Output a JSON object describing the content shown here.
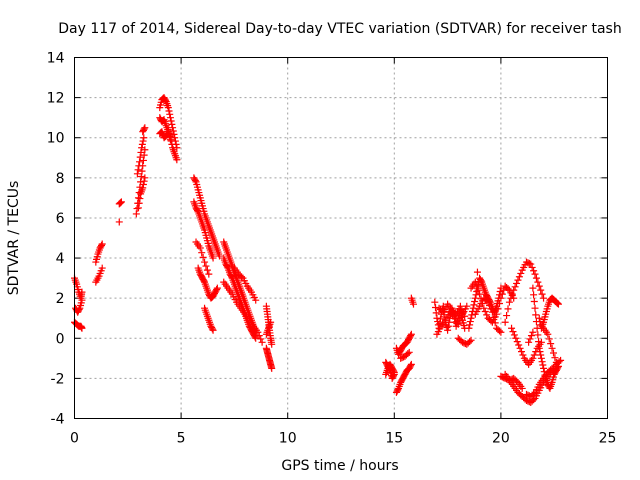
{
  "chart_data": {
    "type": "scatter",
    "title": "Day 117 of 2014, Sidereal Day-to-day VTEC variation (SDTVAR) for receiver tash",
    "xlabel": "GPS time / hours",
    "ylabel": "SDTVAR / TECUs",
    "xlim": [
      0,
      25
    ],
    "ylim": [
      -4,
      14
    ],
    "xticks": [
      0,
      5,
      10,
      15,
      20,
      25
    ],
    "yticks": [
      -4,
      -2,
      0,
      2,
      4,
      6,
      8,
      10,
      12,
      14
    ],
    "grid": true,
    "marker": "+",
    "color": "#ff0000",
    "series": [
      {
        "name": "tash",
        "segments": [
          {
            "x": [
              0.0,
              0.1,
              0.2,
              0.3,
              0.35
            ],
            "y": [
              3.0,
              2.7,
              2.3,
              2.0,
              2.3
            ]
          },
          {
            "x": [
              0.05,
              0.15,
              0.25,
              0.35
            ],
            "y": [
              1.5,
              1.3,
              1.5,
              1.9
            ]
          },
          {
            "x": [
              0.0,
              0.1,
              0.2,
              0.3,
              0.35
            ],
            "y": [
              0.8,
              0.7,
              0.6,
              0.6,
              0.5
            ]
          },
          {
            "x": [
              1.0,
              1.1,
              1.2,
              1.3
            ],
            "y": [
              3.8,
              4.2,
              4.5,
              4.7
            ]
          },
          {
            "x": [
              1.0,
              1.15,
              1.3
            ],
            "y": [
              2.8,
              3.1,
              3.5
            ]
          },
          {
            "x": [
              2.1,
              2.2
            ],
            "y": [
              6.7,
              6.8
            ]
          },
          {
            "x": [
              2.1
            ],
            "y": [
              5.8
            ]
          },
          {
            "x": [
              2.9,
              3.0,
              3.1,
              3.2,
              3.3
            ],
            "y": [
              6.2,
              7.0,
              7.8,
              8.6,
              9.4
            ]
          },
          {
            "x": [
              2.95,
              3.05,
              3.15,
              3.25
            ],
            "y": [
              8.2,
              8.8,
              9.5,
              10.0
            ]
          },
          {
            "x": [
              3.2,
              3.3
            ],
            "y": [
              10.3,
              10.5
            ]
          },
          {
            "x": [
              3.0,
              3.1,
              3.2,
              3.3
            ],
            "y": [
              6.5,
              7.2,
              7.5,
              8.0
            ]
          },
          {
            "x": [
              4.0,
              4.1,
              4.2,
              4.3,
              4.4,
              4.5,
              4.6,
              4.7,
              4.8
            ],
            "y": [
              11.5,
              11.9,
              12.0,
              11.8,
              11.5,
              11.0,
              10.5,
              10.0,
              9.5
            ]
          },
          {
            "x": [
              4.0,
              4.1,
              4.2,
              4.3,
              4.4,
              4.5,
              4.6,
              4.7,
              4.8
            ],
            "y": [
              11.0,
              10.8,
              10.9,
              10.6,
              10.3,
              10.0,
              9.5,
              9.2,
              8.9
            ]
          },
          {
            "x": [
              4.0,
              4.1,
              4.2,
              4.3,
              4.4,
              4.5
            ],
            "y": [
              10.2,
              10.3,
              10.0,
              10.1,
              10.4,
              9.9
            ]
          },
          {
            "x": [
              5.6,
              5.7,
              5.8,
              5.9,
              6.0,
              6.1,
              6.2,
              6.3,
              6.4,
              6.5,
              6.6,
              6.7,
              6.8
            ],
            "y": [
              8.0,
              7.8,
              7.4,
              7.0,
              6.6,
              6.2,
              5.9,
              5.6,
              5.3,
              5.0,
              4.7,
              4.4,
              4.1
            ]
          },
          {
            "x": [
              5.6,
              5.7,
              5.8,
              5.9,
              6.0,
              6.1,
              6.2,
              6.3,
              6.4,
              6.5
            ],
            "y": [
              6.8,
              6.5,
              6.3,
              6.0,
              5.7,
              5.4,
              5.0,
              4.6,
              4.3,
              4.0
            ]
          },
          {
            "x": [
              5.7,
              5.9,
              6.1,
              6.3
            ],
            "y": [
              4.8,
              4.5,
              3.8,
              3.2
            ]
          },
          {
            "x": [
              5.8,
              5.9,
              6.0,
              6.1,
              6.2,
              6.3,
              6.4,
              6.5,
              6.6,
              6.7
            ],
            "y": [
              3.5,
              3.2,
              3.0,
              2.8,
              2.5,
              2.2,
              2.0,
              2.1,
              2.3,
              2.5
            ]
          },
          {
            "x": [
              6.1,
              6.2,
              6.3,
              6.4,
              6.5
            ],
            "y": [
              1.5,
              1.2,
              0.9,
              0.6,
              0.4
            ]
          },
          {
            "x": [
              7.0,
              7.1,
              7.2,
              7.3,
              7.4,
              7.5,
              7.6,
              7.7,
              7.8,
              7.9,
              8.0,
              8.1,
              8.2,
              8.3,
              8.4,
              8.5
            ],
            "y": [
              4.8,
              4.5,
              4.2,
              3.9,
              3.6,
              3.3,
              3.0,
              2.7,
              2.4,
              2.1,
              1.8,
              1.5,
              1.2,
              0.9,
              0.6,
              0.3
            ]
          },
          {
            "x": [
              7.0,
              7.1,
              7.2,
              7.3,
              7.4,
              7.5,
              7.6,
              7.7,
              7.8,
              7.9,
              8.0,
              8.1,
              8.2,
              8.3,
              8.4,
              8.5
            ],
            "y": [
              4.0,
              3.7,
              3.5,
              3.2,
              3.0,
              2.7,
              2.4,
              2.1,
              1.8,
              1.5,
              1.2,
              0.9,
              0.6,
              0.4,
              0.2,
              0.0
            ]
          },
          {
            "x": [
              7.0,
              7.2,
              7.4,
              7.6,
              7.8,
              8.0,
              8.2,
              8.4,
              8.6,
              8.8
            ],
            "y": [
              2.8,
              2.5,
              2.2,
              1.8,
              1.5,
              1.2,
              0.9,
              0.6,
              0.3,
              -0.2
            ]
          },
          {
            "x": [
              7.5,
              7.7,
              7.9,
              8.1,
              8.3,
              8.5
            ],
            "y": [
              3.5,
              3.2,
              3.0,
              2.6,
              2.3,
              1.9
            ]
          },
          {
            "x": [
              9.0,
              9.05,
              9.1,
              9.15,
              9.2,
              9.25
            ],
            "y": [
              1.6,
              1.2,
              0.8,
              0.4,
              0.0,
              -0.3
            ]
          },
          {
            "x": [
              9.0,
              9.05,
              9.1,
              9.15,
              9.2,
              9.25
            ],
            "y": [
              -0.5,
              -0.7,
              -0.9,
              -1.1,
              -1.3,
              -1.5
            ]
          },
          {
            "x": [
              9.0,
              9.1,
              9.2
            ],
            "y": [
              0.2,
              0.5,
              0.8
            ]
          },
          {
            "x": [
              14.6,
              14.7,
              14.8,
              14.9,
              15.0
            ],
            "y": [
              -1.8,
              -1.5,
              -1.3,
              -1.5,
              -1.7
            ]
          },
          {
            "x": [
              14.6,
              14.7,
              14.8,
              14.9,
              15.0
            ],
            "y": [
              -1.2,
              -1.4,
              -1.6,
              -2.0,
              -1.8
            ]
          },
          {
            "x": [
              15.1,
              15.2,
              15.3,
              15.4,
              15.5,
              15.6,
              15.7,
              15.8
            ],
            "y": [
              -2.7,
              -2.5,
              -2.2,
              -2.0,
              -1.8,
              -1.6,
              -1.5,
              -1.3
            ]
          },
          {
            "x": [
              15.1,
              15.2,
              15.3,
              15.4,
              15.5,
              15.6,
              15.7,
              15.8
            ],
            "y": [
              -0.5,
              -0.8,
              -0.6,
              -0.4,
              -0.3,
              -0.2,
              0.0,
              0.2
            ]
          },
          {
            "x": [
              15.3,
              15.5,
              15.7
            ],
            "y": [
              -1.0,
              -0.9,
              -0.7
            ]
          },
          {
            "x": [
              15.8,
              15.9
            ],
            "y": [
              2.0,
              1.7
            ]
          },
          {
            "x": [
              16.9,
              17.0,
              17.1,
              17.2,
              17.3,
              17.4,
              17.5,
              17.6,
              17.7,
              17.8,
              17.9,
              18.0,
              18.1,
              18.2,
              18.3
            ],
            "y": [
              1.8,
              1.0,
              0.5,
              1.2,
              1.6,
              0.8,
              0.4,
              1.0,
              1.5,
              1.2,
              0.6,
              1.0,
              1.4,
              0.9,
              0.5
            ]
          },
          {
            "x": [
              17.0,
              17.2,
              17.4,
              17.6,
              17.8,
              18.0,
              18.2,
              18.4
            ],
            "y": [
              0.2,
              0.6,
              0.9,
              1.3,
              1.1,
              0.7,
              1.2,
              1.6
            ]
          },
          {
            "x": [
              17.1,
              17.3,
              17.5,
              17.7,
              17.9,
              18.1,
              18.3
            ],
            "y": [
              1.5,
              1.3,
              1.7,
              1.4,
              1.2,
              1.6,
              1.1
            ]
          },
          {
            "x": [
              18.0,
              18.2,
              18.4,
              18.6
            ],
            "y": [
              0.0,
              -0.2,
              -0.3,
              -0.1
            ]
          },
          {
            "x": [
              18.5,
              18.6,
              18.7,
              18.8,
              18.9,
              19.0,
              19.1,
              19.2,
              19.3,
              19.4,
              19.5,
              19.6,
              19.7,
              19.8,
              19.9,
              20.0
            ],
            "y": [
              0.5,
              1.0,
              1.5,
              2.0,
              2.5,
              3.0,
              2.8,
              2.5,
              2.2,
              2.0,
              1.8,
              1.5,
              1.3,
              1.6,
              2.0,
              2.5
            ]
          },
          {
            "x": [
              18.6,
              18.8,
              19.0,
              19.2,
              19.4,
              19.6,
              19.8,
              20.0,
              20.2,
              20.4,
              20.6
            ],
            "y": [
              2.5,
              2.8,
              2.2,
              1.5,
              1.0,
              0.8,
              1.2,
              2.0,
              2.6,
              2.4,
              2.0
            ]
          },
          {
            "x": [
              18.8,
              19.0,
              19.2,
              19.4,
              19.6,
              19.8,
              20.0
            ],
            "y": [
              1.2,
              1.6,
              2.0,
              1.8,
              1.3,
              0.5,
              0.3
            ]
          },
          {
            "x": [
              18.9
            ],
            "y": [
              3.3
            ]
          },
          {
            "x": [
              20.2,
              20.4,
              20.6,
              20.8,
              21.0,
              21.2,
              21.4,
              21.6,
              21.8,
              22.0
            ],
            "y": [
              0.8,
              1.8,
              2.4,
              2.9,
              3.4,
              3.8,
              3.7,
              3.2,
              2.6,
              2.0
            ]
          },
          {
            "x": [
              20.5,
              20.7,
              20.9,
              21.1,
              21.3,
              21.5,
              21.7,
              21.9
            ],
            "y": [
              0.5,
              0.0,
              -0.5,
              -1.0,
              -1.3,
              -1.0,
              -0.5,
              -0.2
            ]
          },
          {
            "x": [
              20.0,
              20.2,
              20.4,
              20.6,
              20.8,
              21.0,
              21.2,
              21.4,
              21.6,
              21.8,
              22.0,
              22.2,
              22.4,
              22.6,
              22.8
            ],
            "y": [
              -1.9,
              -2.0,
              -2.1,
              -2.4,
              -2.7,
              -2.9,
              -3.1,
              -3.2,
              -3.0,
              -2.6,
              -2.2,
              -1.9,
              -1.6,
              -1.3,
              -1.1
            ]
          },
          {
            "x": [
              20.2,
              20.4,
              20.6,
              20.8,
              21.0
            ],
            "y": [
              -1.8,
              -2.1,
              -2.0,
              -2.2,
              -2.5
            ]
          },
          {
            "x": [
              21.2,
              21.4,
              21.6,
              21.8,
              22.0,
              22.2,
              22.4
            ],
            "y": [
              -2.8,
              -2.9,
              -2.7,
              -2.3,
              -2.0,
              -1.7,
              -1.5
            ]
          },
          {
            "x": [
              21.5,
              21.6,
              21.7,
              21.8,
              21.9,
              22.0,
              22.1,
              22.2,
              22.3,
              22.4,
              22.5,
              22.6,
              22.7
            ],
            "y": [
              2.5,
              1.5,
              0.5,
              -0.5,
              -1.0,
              -1.5,
              -2.0,
              -2.3,
              -2.5,
              -2.2,
              -1.8,
              -1.6,
              -1.4
            ]
          },
          {
            "x": [
              21.8,
              21.9,
              22.0,
              22.1,
              22.2,
              22.3,
              22.4,
              22.5,
              22.6,
              22.7
            ],
            "y": [
              1.0,
              0.5,
              0.8,
              1.2,
              1.6,
              1.9,
              2.0,
              1.9,
              1.8,
              1.7
            ]
          },
          {
            "x": [
              22.0,
              22.2,
              22.4,
              22.6
            ],
            "y": [
              0.5,
              0.2,
              -0.5,
              -1.2
            ]
          },
          {
            "x": [
              21.3,
              21.5
            ],
            "y": [
              -0.2,
              0.3
            ]
          }
        ]
      }
    ]
  }
}
